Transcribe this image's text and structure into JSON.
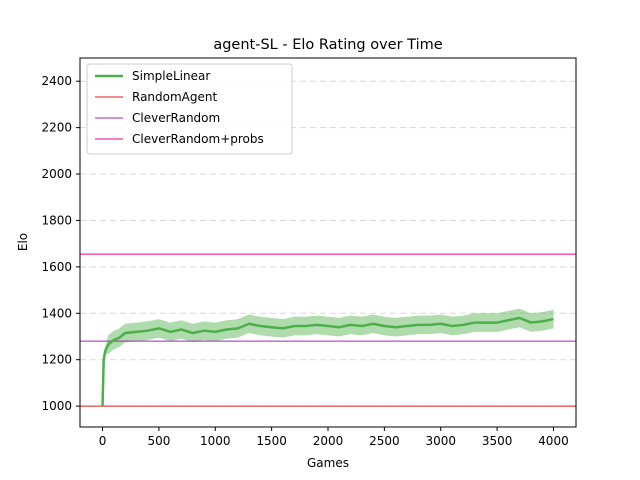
{
  "chart_data": {
    "type": "line",
    "title": "agent-SL - Elo Rating over Time",
    "xlabel": "Games",
    "ylabel": "Elo",
    "xlim": [
      -200,
      4200
    ],
    "ylim": [
      910,
      2500
    ],
    "xticks": [
      0,
      500,
      1000,
      1500,
      2000,
      2500,
      3000,
      3500,
      4000
    ],
    "yticks": [
      1000,
      1200,
      1400,
      1600,
      1800,
      2000,
      2200,
      2400
    ],
    "grid": "y-dashed",
    "legend_position": "top-left",
    "series": [
      {
        "name": "SimpleLinear",
        "color": "#4daf4a",
        "band_color": "#4daf4a",
        "x": [
          0,
          10,
          25,
          50,
          100,
          150,
          200,
          300,
          400,
          500,
          600,
          700,
          800,
          900,
          1000,
          1100,
          1200,
          1300,
          1400,
          1500,
          1600,
          1700,
          1800,
          1900,
          2000,
          2100,
          2200,
          2300,
          2400,
          2500,
          2600,
          2700,
          2800,
          2900,
          3000,
          3100,
          3200,
          3300,
          3400,
          3500,
          3600,
          3700,
          3800,
          3900,
          4000
        ],
        "values": [
          1000,
          1200,
          1240,
          1265,
          1285,
          1295,
          1315,
          1320,
          1325,
          1335,
          1320,
          1330,
          1315,
          1325,
          1320,
          1330,
          1335,
          1355,
          1345,
          1340,
          1335,
          1345,
          1345,
          1350,
          1345,
          1340,
          1350,
          1345,
          1355,
          1345,
          1340,
          1345,
          1350,
          1350,
          1355,
          1345,
          1350,
          1360,
          1360,
          1360,
          1370,
          1380,
          1360,
          1365,
          1375
        ],
        "band": 40
      },
      {
        "name": "RandomAgent",
        "color": "#e41a1c",
        "hline": 1000
      },
      {
        "name": "CleverRandom",
        "color": "#9c27b0",
        "hline": 1280
      },
      {
        "name": "CleverRandom+probs",
        "color": "#e6008a",
        "hline": 1655
      }
    ]
  }
}
